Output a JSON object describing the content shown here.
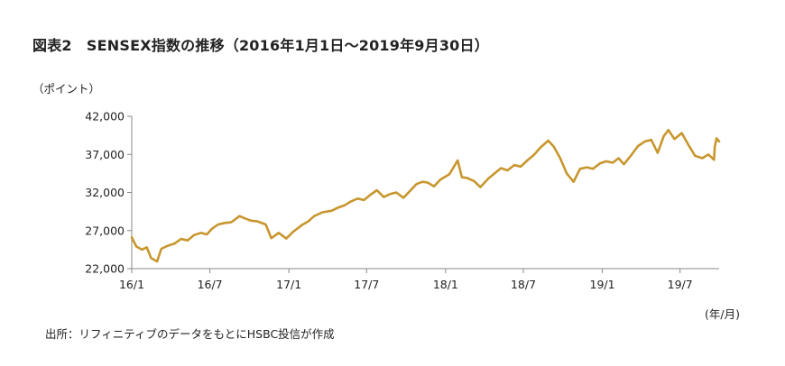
{
  "chart_data": {
    "type": "line",
    "title": "図表2　SENSEX指数の推移（2016年1月1日～2019年9月30日）",
    "ylabel": "（ポイント）",
    "xlabel": "(年/月)",
    "source": "出所：リフィニティブのデータをもとにHSBC投信が作成",
    "ylim": [
      22000,
      42000
    ],
    "xlim": [
      "2016-01-01",
      "2019-09-30"
    ],
    "y_ticks": [
      {
        "value": 22000,
        "label": "22,000"
      },
      {
        "value": 27000,
        "label": "27,000"
      },
      {
        "value": 32000,
        "label": "32,000"
      },
      {
        "value": 37000,
        "label": "37,000"
      },
      {
        "value": 42000,
        "label": "42,000"
      }
    ],
    "x_ticks": [
      {
        "date": "2016-01-01",
        "label": "16/1"
      },
      {
        "date": "2016-07-01",
        "label": "16/7"
      },
      {
        "date": "2017-01-01",
        "label": "17/1"
      },
      {
        "date": "2017-07-01",
        "label": "17/7"
      },
      {
        "date": "2018-01-01",
        "label": "18/1"
      },
      {
        "date": "2018-07-01",
        "label": "18/7"
      },
      {
        "date": "2019-01-01",
        "label": "19/1"
      },
      {
        "date": "2019-07-01",
        "label": "19/7"
      }
    ],
    "grid": false,
    "colors": {
      "line": "#C8962E",
      "axis": "#888888"
    },
    "series": [
      {
        "points": [
          [
            "2016-01-01",
            26100
          ],
          [
            "2016-01-12",
            24900
          ],
          [
            "2016-01-25",
            24500
          ],
          [
            "2016-02-05",
            24800
          ],
          [
            "2016-02-15",
            23400
          ],
          [
            "2016-02-29",
            22950
          ],
          [
            "2016-03-10",
            24600
          ],
          [
            "2016-03-25",
            25000
          ],
          [
            "2016-04-10",
            25300
          ],
          [
            "2016-04-25",
            25900
          ],
          [
            "2016-05-10",
            25700
          ],
          [
            "2016-05-25",
            26400
          ],
          [
            "2016-06-10",
            26700
          ],
          [
            "2016-06-24",
            26500
          ],
          [
            "2016-07-05",
            27200
          ],
          [
            "2016-07-20",
            27800
          ],
          [
            "2016-08-05",
            28000
          ],
          [
            "2016-08-20",
            28100
          ],
          [
            "2016-09-08",
            28900
          ],
          [
            "2016-09-20",
            28600
          ],
          [
            "2016-10-05",
            28300
          ],
          [
            "2016-10-20",
            28200
          ],
          [
            "2016-11-08",
            27800
          ],
          [
            "2016-11-21",
            26000
          ],
          [
            "2016-12-08",
            26700
          ],
          [
            "2016-12-26",
            25950
          ],
          [
            "2017-01-10",
            26800
          ],
          [
            "2017-01-31",
            27700
          ],
          [
            "2017-02-15",
            28200
          ],
          [
            "2017-03-01",
            28900
          ],
          [
            "2017-03-20",
            29400
          ],
          [
            "2017-04-10",
            29600
          ],
          [
            "2017-04-25",
            30000
          ],
          [
            "2017-05-10",
            30300
          ],
          [
            "2017-05-25",
            30800
          ],
          [
            "2017-06-10",
            31200
          ],
          [
            "2017-06-25",
            31000
          ],
          [
            "2017-07-10",
            31700
          ],
          [
            "2017-07-25",
            32300
          ],
          [
            "2017-08-10",
            31400
          ],
          [
            "2017-08-25",
            31800
          ],
          [
            "2017-09-08",
            32000
          ],
          [
            "2017-09-25",
            31300
          ],
          [
            "2017-10-10",
            32200
          ],
          [
            "2017-10-25",
            33100
          ],
          [
            "2017-11-08",
            33400
          ],
          [
            "2017-11-20",
            33300
          ],
          [
            "2017-12-05",
            32800
          ],
          [
            "2017-12-20",
            33700
          ],
          [
            "2018-01-10",
            34400
          ],
          [
            "2018-01-29",
            36200
          ],
          [
            "2018-02-08",
            34000
          ],
          [
            "2018-02-20",
            33900
          ],
          [
            "2018-03-08",
            33500
          ],
          [
            "2018-03-23",
            32700
          ],
          [
            "2018-04-10",
            33800
          ],
          [
            "2018-04-25",
            34500
          ],
          [
            "2018-05-10",
            35200
          ],
          [
            "2018-05-25",
            34900
          ],
          [
            "2018-06-10",
            35600
          ],
          [
            "2018-06-25",
            35400
          ],
          [
            "2018-07-10",
            36200
          ],
          [
            "2018-07-25",
            36900
          ],
          [
            "2018-08-10",
            37900
          ],
          [
            "2018-08-28",
            38800
          ],
          [
            "2018-09-10",
            38000
          ],
          [
            "2018-09-25",
            36500
          ],
          [
            "2018-10-10",
            34500
          ],
          [
            "2018-10-26",
            33400
          ],
          [
            "2018-11-10",
            35100
          ],
          [
            "2018-11-26",
            35300
          ],
          [
            "2018-12-10",
            35100
          ],
          [
            "2018-12-26",
            35800
          ],
          [
            "2019-01-10",
            36100
          ],
          [
            "2019-01-25",
            35900
          ],
          [
            "2019-02-08",
            36500
          ],
          [
            "2019-02-20",
            35700
          ],
          [
            "2019-03-08",
            36800
          ],
          [
            "2019-03-25",
            38100
          ],
          [
            "2019-04-10",
            38700
          ],
          [
            "2019-04-25",
            38900
          ],
          [
            "2019-05-10",
            37200
          ],
          [
            "2019-05-24",
            39400
          ],
          [
            "2019-06-04",
            40200
          ],
          [
            "2019-06-18",
            39000
          ],
          [
            "2019-07-05",
            39800
          ],
          [
            "2019-07-20",
            38300
          ],
          [
            "2019-08-05",
            36800
          ],
          [
            "2019-08-22",
            36500
          ],
          [
            "2019-09-05",
            37000
          ],
          [
            "2019-09-18",
            36300
          ],
          [
            "2019-09-20",
            38000
          ],
          [
            "2019-09-24",
            39100
          ],
          [
            "2019-09-30",
            38700
          ]
        ]
      }
    ]
  }
}
